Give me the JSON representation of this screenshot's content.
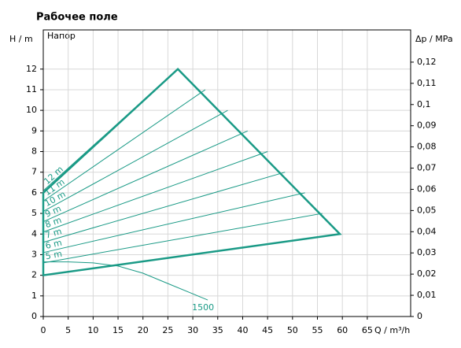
{
  "chart_data": {
    "type": "line",
    "title": "Рабочее поле",
    "annotation": "Напор",
    "ylabel": "H / m",
    "y2label": "Δp / MPa",
    "xlabel": "Q / m³/h",
    "color": "#1a9a86",
    "grid": true,
    "xlim": [
      0,
      73.7
    ],
    "xticks": [
      0,
      5,
      10,
      15,
      20,
      25,
      30,
      35,
      40,
      45,
      50,
      55,
      60,
      65
    ],
    "ylim": [
      0,
      13.9
    ],
    "yticks": [
      0,
      1,
      2,
      3,
      4,
      5,
      6,
      7,
      8,
      9,
      10,
      11,
      12
    ],
    "y2lim": [
      0,
      0.1352
    ],
    "y2ticks": [
      0,
      {
        "value": 0.01,
        "label": "0,01"
      },
      {
        "value": 0.02,
        "label": "0,02"
      },
      {
        "value": 0.03,
        "label": "0,03"
      },
      {
        "value": 0.04,
        "label": "0,04"
      },
      {
        "value": 0.05,
        "label": "0,05"
      },
      {
        "value": 0.06,
        "label": "0,06"
      },
      {
        "value": 0.07,
        "label": "0,07"
      },
      {
        "value": 0.08,
        "label": "0,08"
      },
      {
        "value": 0.09,
        "label": "0,09"
      },
      {
        "value": 0.1,
        "label": "0,1"
      },
      {
        "value": 0.11,
        "label": "0,11"
      },
      {
        "value": 0.12,
        "label": "0,12"
      }
    ],
    "boundary": {
      "x": [
        0,
        27,
        59.5,
        0
      ],
      "values": [
        6,
        12,
        4,
        2
      ]
    },
    "series": [
      {
        "name": "12 m",
        "x": [
          0,
          27
        ],
        "values": [
          6.1,
          12
        ]
      },
      {
        "name": "11 m",
        "x": [
          0,
          32.5
        ],
        "values": [
          5.6,
          11
        ]
      },
      {
        "name": "10 m",
        "x": [
          0,
          37
        ],
        "values": [
          5.1,
          10
        ]
      },
      {
        "name": "9 m",
        "x": [
          0,
          41
        ],
        "values": [
          4.6,
          9
        ]
      },
      {
        "name": "8 m",
        "x": [
          0,
          45
        ],
        "values": [
          4.1,
          8
        ]
      },
      {
        "name": "7 m",
        "x": [
          0,
          48.5
        ],
        "values": [
          3.6,
          7
        ]
      },
      {
        "name": "6 m",
        "x": [
          0,
          52.5
        ],
        "values": [
          3.1,
          6
        ]
      },
      {
        "name": "5 m",
        "x": [
          0,
          56
        ],
        "values": [
          2.6,
          5
        ]
      }
    ],
    "curve": {
      "name": "1500",
      "x": [
        0,
        5,
        10,
        15,
        20,
        25,
        30,
        33
      ],
      "values": [
        2.65,
        2.65,
        2.6,
        2.45,
        2.1,
        1.6,
        1.1,
        0.8
      ]
    }
  }
}
